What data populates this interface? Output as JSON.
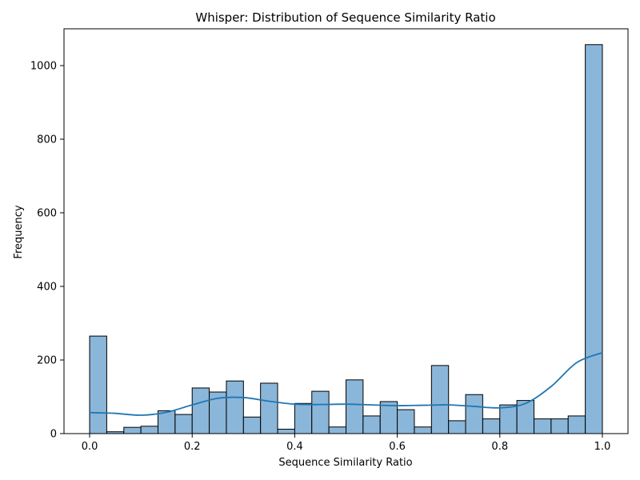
{
  "chart_data": {
    "type": "bar",
    "title": "Whisper: Distribution of Sequence Similarity Ratio",
    "xlabel": "Sequence Similarity Ratio",
    "ylabel": "Frequency",
    "xlim": [
      -0.05,
      1.05
    ],
    "ylim": [
      0,
      1100
    ],
    "x_ticks": [
      0.0,
      0.2,
      0.4,
      0.6,
      0.8,
      1.0
    ],
    "x_tick_labels": [
      "0.0",
      "0.2",
      "0.4",
      "0.6",
      "0.8",
      "1.0"
    ],
    "y_ticks": [
      0,
      200,
      400,
      600,
      800,
      1000
    ],
    "y_tick_labels": [
      "0",
      "200",
      "400",
      "600",
      "800",
      "1000"
    ],
    "bin_width": 0.03333,
    "bins_start": [
      0.0,
      0.0333,
      0.0667,
      0.1,
      0.1333,
      0.1667,
      0.2,
      0.2333,
      0.2667,
      0.3,
      0.3333,
      0.3667,
      0.4,
      0.4333,
      0.4667,
      0.5,
      0.5333,
      0.5667,
      0.6,
      0.6333,
      0.6667,
      0.7,
      0.7333,
      0.7667,
      0.8,
      0.8333,
      0.8667,
      0.9,
      0.9333,
      0.9667
    ],
    "values": [
      265,
      5,
      17,
      20,
      62,
      52,
      124,
      113,
      143,
      45,
      137,
      12,
      82,
      115,
      18,
      146,
      48,
      87,
      65,
      18,
      185,
      35,
      106,
      40,
      78,
      90,
      40,
      40,
      48,
      1057
    ],
    "kde": {
      "x": [
        0.0,
        0.05,
        0.1,
        0.15,
        0.2,
        0.25,
        0.3,
        0.35,
        0.4,
        0.45,
        0.5,
        0.55,
        0.6,
        0.65,
        0.7,
        0.75,
        0.8,
        0.85,
        0.9,
        0.95,
        1.0
      ],
      "y": [
        57,
        55,
        50,
        58,
        78,
        96,
        98,
        88,
        80,
        79,
        80,
        78,
        76,
        77,
        78,
        74,
        70,
        82,
        128,
        193,
        220
      ]
    },
    "colors": {
      "bar_fill": "#8ab6d9",
      "bar_edge": "#000000",
      "kde_line": "#1f77b4"
    },
    "grid": false,
    "legend": "none"
  }
}
